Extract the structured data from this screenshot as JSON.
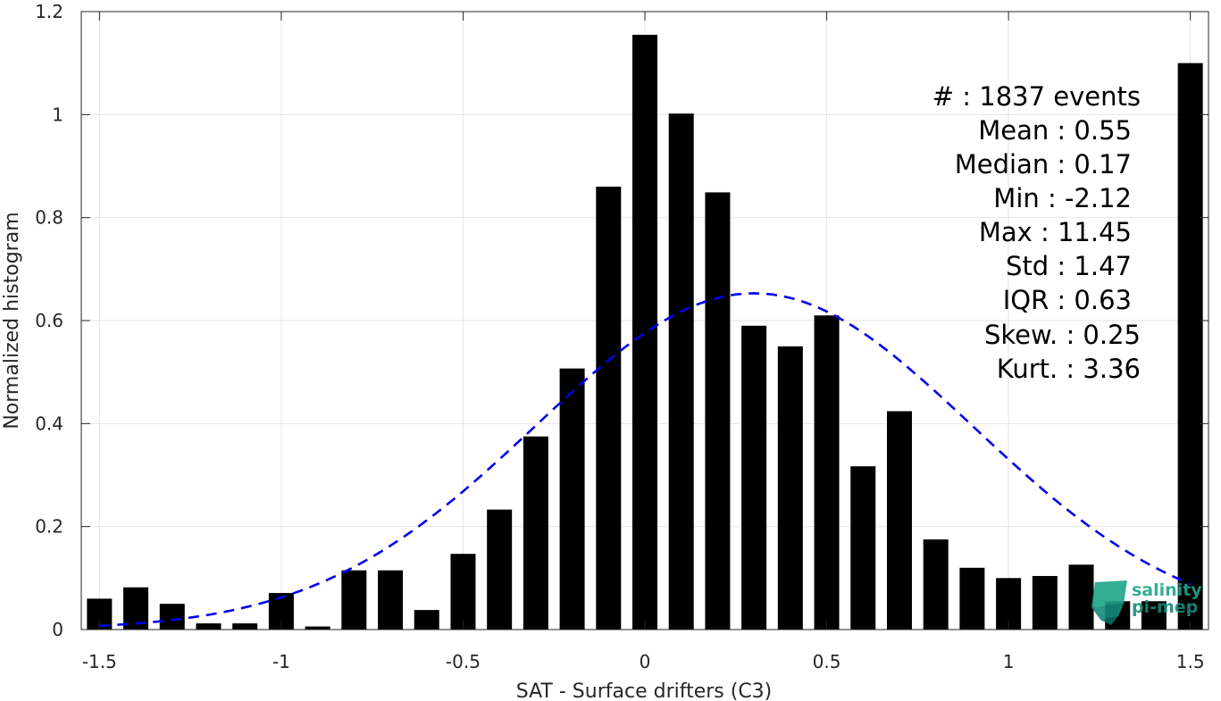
{
  "chart_data": {
    "type": "bar",
    "xlabel": "SAT - Surface drifters (C3)",
    "ylabel": "Normalized histogram",
    "xlim": [
      -1.55,
      1.55
    ],
    "ylim": [
      0,
      1.2
    ],
    "grid": true,
    "xticks": [
      -1.5,
      -1,
      -0.5,
      0,
      0.5,
      1,
      1.5
    ],
    "xtick_labels": [
      "-1.5",
      "-1",
      "-0.5",
      "0",
      "0.5",
      "1",
      "1.5"
    ],
    "yticks": [
      0,
      0.2,
      0.4,
      0.6,
      0.8,
      1,
      1.2
    ],
    "ytick_labels": [
      "0",
      "0.2",
      "0.4",
      "0.6",
      "0.8",
      "1",
      "1.2"
    ],
    "bar_color": "#000000",
    "series": [
      {
        "x": [
          -1.5,
          -1.4,
          -1.3,
          -1.2,
          -1.1,
          -1.0,
          -0.9,
          -0.8,
          -0.7,
          -0.6,
          -0.5,
          -0.4,
          -0.3,
          -0.2,
          -0.1,
          0.0,
          0.1,
          0.2,
          0.3,
          0.4,
          0.5,
          0.6,
          0.7,
          0.8,
          0.9,
          1.0,
          1.1,
          1.2,
          1.3,
          1.4,
          1.5
        ],
        "values": [
          0.06,
          0.082,
          0.05,
          0.012,
          0.012,
          0.071,
          0.006,
          0.115,
          0.115,
          0.038,
          0.147,
          0.233,
          0.375,
          0.507,
          0.86,
          1.155,
          1.002,
          0.849,
          0.59,
          0.55,
          0.61,
          0.317,
          0.424,
          0.175,
          0.12,
          0.1,
          0.104,
          0.126,
          0.055,
          0.055,
          1.1
        ]
      }
    ],
    "fit_curve": {
      "type": "gaussian",
      "style": "dashed",
      "color": "#0000ee",
      "peak_x": 0.3,
      "peak_y": 0.653,
      "sigma": 0.6,
      "x_range": [
        -1.5,
        1.5
      ]
    },
    "annotations": [
      "#  : 1837 events",
      "Mean : 0.55",
      "Median : 0.17",
      "Min : -2.12",
      "Max : 11.45",
      "Std : 1.47",
      "IQR : 0.63",
      "Skew. : 0.25",
      "Kurt. : 3.36"
    ]
  },
  "logo": {
    "line1": "salinity",
    "line2": "pi-mep",
    "colors": [
      "#1fa58a",
      "#138b7a",
      "#0f6b64"
    ]
  }
}
